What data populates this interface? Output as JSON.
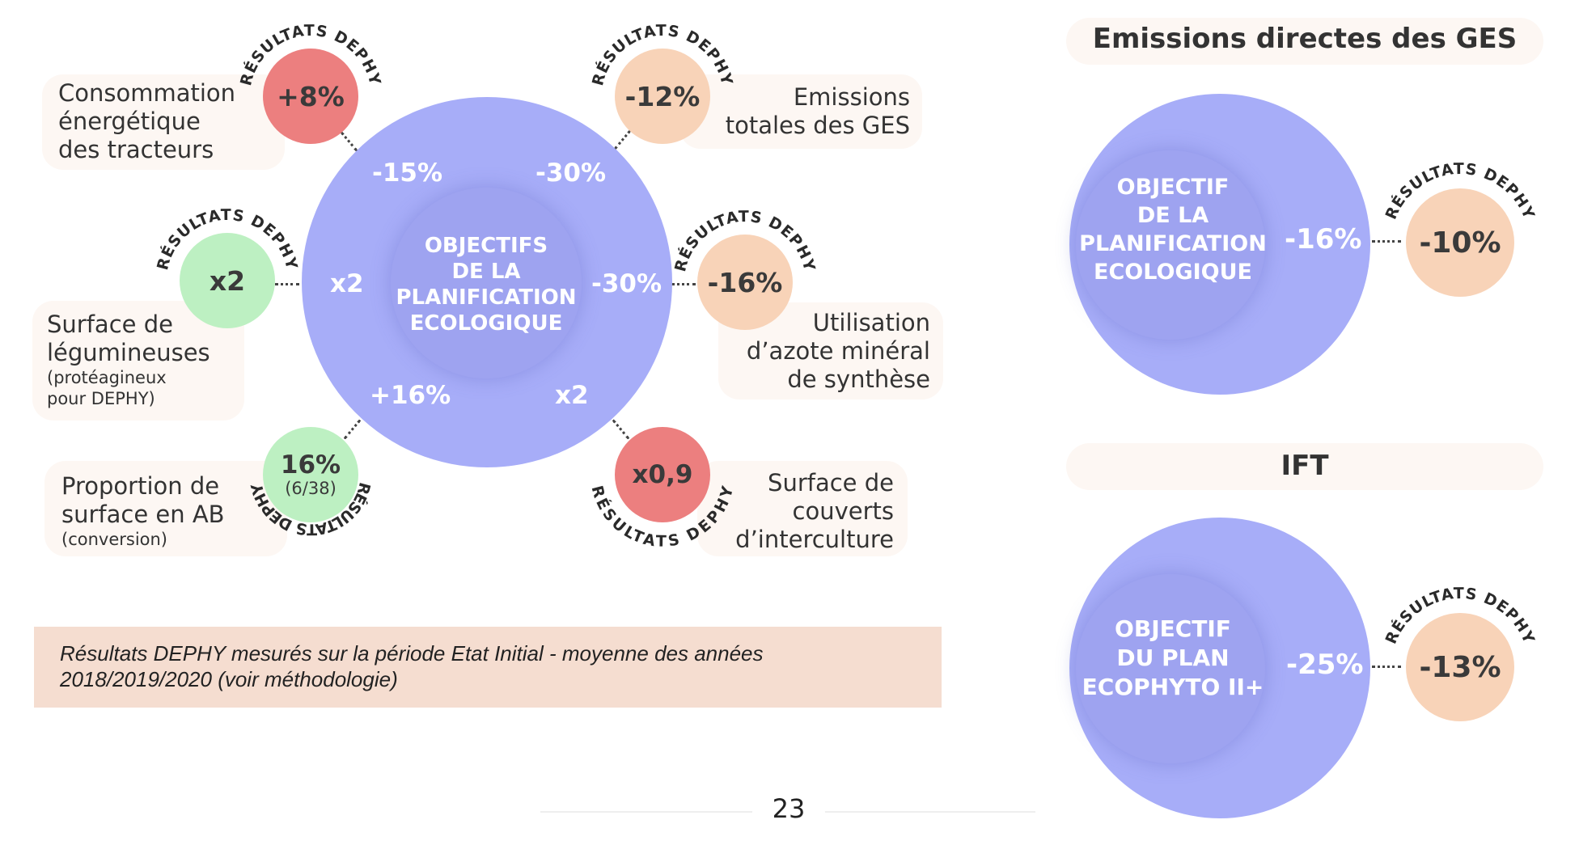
{
  "ring_label": "RÉSULTATS DEPHY",
  "main_circle": {
    "center_text": [
      "OBJECTIFS",
      "DE LA",
      "PLANIFICATION",
      "ECOLOGIQUE"
    ],
    "targets": {
      "tl": "-15%",
      "tr": "-30%",
      "l": "x2",
      "r": "-30%",
      "bl": "+16%",
      "br": "x2"
    }
  },
  "indicators": [
    {
      "id": "conso",
      "label": [
        "Consommation",
        "énergétique",
        "des tracteurs"
      ],
      "sublabel": "",
      "result": "+8%",
      "result_sub": "",
      "color": "#ec7f7f"
    },
    {
      "id": "emissions",
      "label": [
        "Emissions",
        "totales des GES"
      ],
      "sublabel": "",
      "result": "-12%",
      "result_sub": "",
      "color": "#f8d3b8"
    },
    {
      "id": "legumineuses",
      "label": [
        "Surface de",
        "légumineuses"
      ],
      "sublabel": "(protéagineux\npour DEPHY)",
      "result": "x2",
      "result_sub": "",
      "color": "#bdf0c2"
    },
    {
      "id": "azote",
      "label": [
        "Utilisation",
        "d’azote minéral",
        "de synthèse"
      ],
      "sublabel": "",
      "result": "-16%",
      "result_sub": "",
      "color": "#f8d3b8"
    },
    {
      "id": "ab",
      "label": [
        "Proportion de",
        "surface en AB"
      ],
      "sublabel": "(conversion)",
      "result": "16%",
      "result_sub": "(6/38)",
      "color": "#bdf0c2"
    },
    {
      "id": "couverts",
      "label": [
        "Surface de",
        "couverts",
        "d’interculture"
      ],
      "sublabel": "",
      "result": "x0,9",
      "result_sub": "",
      "color": "#ec7f7f"
    }
  ],
  "note": "Résultats DEPHY mesurés sur la période Etat Initial - moyenne des années 2018/2019/2020 (voir méthodologie)",
  "right_panels": [
    {
      "title": "Emissions directes des GES",
      "circle_text": [
        "OBJECTIF",
        "DE LA",
        "PLANIFICATION",
        "ECOLOGIQUE"
      ],
      "target": "-16%",
      "result": "-10%",
      "color": "#f8d3b8"
    },
    {
      "title": "IFT",
      "circle_text": [
        "OBJECTIF",
        "DU PLAN",
        "ECOPHYTO II+"
      ],
      "target": "-25%",
      "result": "-13%",
      "color": "#f8d3b8"
    }
  ],
  "page_number": "23"
}
